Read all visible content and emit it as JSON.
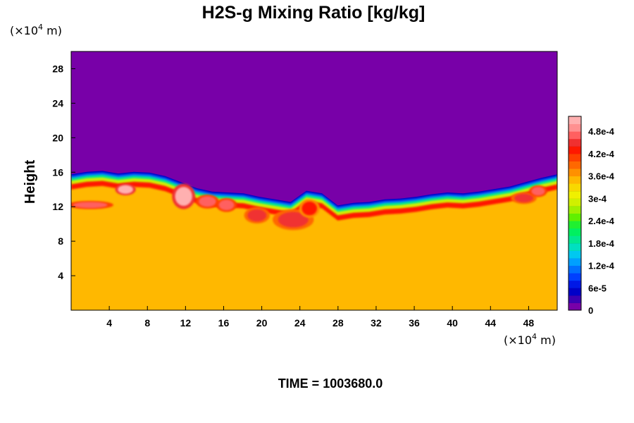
{
  "chart_data": {
    "type": "heatmap",
    "title": "H2S-g Mixing Ratio [kg/kg]",
    "ylabel": "Height",
    "x_unit": {
      "prefix": "(×10",
      "exp": "4",
      "suffix": " m)"
    },
    "y_unit": {
      "prefix": "(×10",
      "exp": "4",
      "suffix": " m)"
    },
    "xlim": [
      0,
      51
    ],
    "ylim": [
      0,
      30
    ],
    "x_ticks": [
      "4",
      "8",
      "12",
      "16",
      "20",
      "24",
      "28",
      "32",
      "36",
      "40",
      "44",
      "48"
    ],
    "y_ticks": [
      "4",
      "8",
      "12",
      "16",
      "20",
      "24",
      "28"
    ],
    "colorbar": {
      "range": [
        0,
        0.00052
      ],
      "tick_labels": [
        "0",
        "6e-5",
        "1.2e-4",
        "1.8e-4",
        "2.4e-4",
        "3e-4",
        "3.6e-4",
        "4.2e-4",
        "4.8e-4"
      ],
      "tick_values": [
        0,
        6e-05,
        0.00012,
        0.00018,
        0.00024,
        0.0003,
        0.00036,
        0.00042,
        0.00048
      ],
      "colors": [
        "#7800a8",
        "#3c00b4",
        "#0000c8",
        "#0018e6",
        "#0040ff",
        "#0070ff",
        "#00a0ff",
        "#00c8f0",
        "#00e0c0",
        "#00e890",
        "#00f060",
        "#20f030",
        "#60f000",
        "#a0f000",
        "#d0f000",
        "#f0f000",
        "#f8d800",
        "#ffb800",
        "#ff9000",
        "#ff6800",
        "#ff4000",
        "#ff1800",
        "#f03030",
        "#ff6060",
        "#ff9090",
        "#ffb0b0"
      ]
    },
    "background_value": 0.00034,
    "upper_value": 0,
    "interface_height": [
      14.2,
      14.5,
      14.6,
      14.3,
      14.5,
      14.4,
      14.0,
      13.3,
      12.6,
      12.2,
      12.1,
      12.0,
      11.6,
      11.3,
      11.0,
      12.3,
      12.0,
      10.6,
      10.9,
      11.0,
      11.3,
      11.4,
      11.6,
      11.9,
      12.1,
      12.0,
      12.2,
      12.5,
      12.8,
      13.3,
      13.8,
      14.2
    ],
    "hotspots": [
      {
        "x": 5.7,
        "y": 14.0,
        "rx": 0.8,
        "ry": 0.5,
        "value": 0.0005
      },
      {
        "x": 11.8,
        "y": 13.2,
        "rx": 0.9,
        "ry": 1.1,
        "value": 0.00051
      },
      {
        "x": 14.3,
        "y": 12.6,
        "rx": 0.9,
        "ry": 0.6,
        "value": 0.00046
      },
      {
        "x": 2.0,
        "y": 12.2,
        "rx": 1.8,
        "ry": 0.35,
        "value": 0.00047
      },
      {
        "x": 19.5,
        "y": 11.0,
        "rx": 1.0,
        "ry": 0.7,
        "value": 0.00044
      },
      {
        "x": 23.3,
        "y": 10.5,
        "rx": 1.6,
        "ry": 0.9,
        "value": 0.00044
      },
      {
        "x": 25.0,
        "y": 11.8,
        "rx": 0.8,
        "ry": 0.8,
        "value": 0.00043
      },
      {
        "x": 47.5,
        "y": 13.0,
        "rx": 1.0,
        "ry": 0.5,
        "value": 0.00045
      },
      {
        "x": 49.0,
        "y": 13.8,
        "rx": 0.7,
        "ry": 0.5,
        "value": 0.00046
      },
      {
        "x": 16.3,
        "y": 12.2,
        "rx": 0.8,
        "ry": 0.6,
        "value": 0.00046
      }
    ],
    "grid": false,
    "footer": "TIME = 1003680.0"
  }
}
